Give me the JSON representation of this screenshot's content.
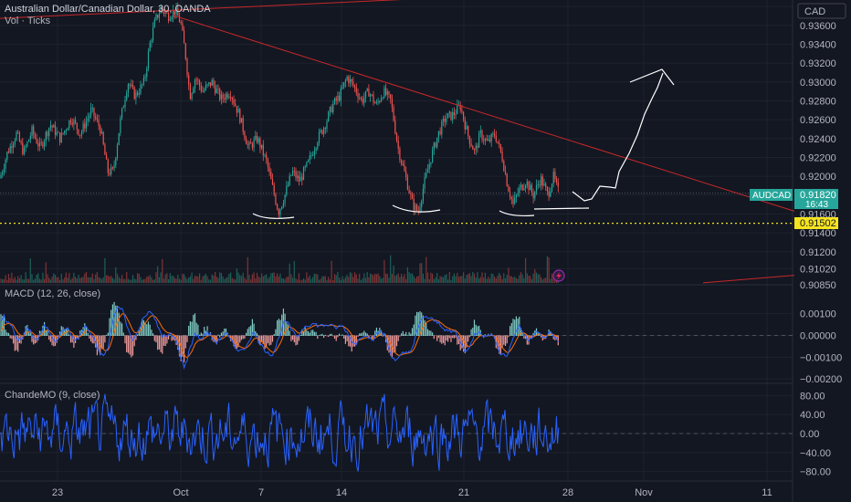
{
  "header": {
    "symbol_title": "Australian Dollar/Canadian Dollar, 30, OANDA",
    "volume_label": "Vol · Ticks",
    "currency_button": "CAD"
  },
  "price_badges": {
    "symbol": "AUDCAD",
    "last_price": "0.91820",
    "countdown": "16:43",
    "level_price": "0.91502"
  },
  "colors": {
    "background": "#131722",
    "up": "#26a69a",
    "down": "#ef5350",
    "trendline": "#c62828",
    "level": "#f5e41f",
    "macd": "#2962ff",
    "signal": "#ff6d00",
    "chande": "#2962ff",
    "drawing": "#ffffff"
  },
  "chart_data": [
    {
      "type": "candlestick",
      "name": "price",
      "title": "Australian Dollar/Canadian Dollar, 30, OANDA",
      "ylim": [
        0.9085,
        0.9385
      ],
      "y_ticks": [
        0.938,
        0.936,
        0.934,
        0.932,
        0.93,
        0.928,
        0.926,
        0.924,
        0.922,
        0.92,
        0.918,
        0.916,
        0.914,
        0.912,
        0.9102,
        0.9085
      ],
      "y_tick_labels": [
        "0.93800",
        "0.93600",
        "0.93400",
        "0.93200",
        "0.93000",
        "0.92800",
        "0.92600",
        "0.92400",
        "0.92200",
        "0.92000",
        "",
        "0.91600",
        "0.91400",
        "0.91200",
        "0.91020",
        "0.90850"
      ],
      "x_tick_labels": [
        "23",
        "Oct",
        "7",
        "14",
        "21",
        "28",
        "Nov",
        "11"
      ],
      "path_points": [
        [
          0,
          0.9198
        ],
        [
          8,
          0.9225
        ],
        [
          18,
          0.9245
        ],
        [
          26,
          0.9225
        ],
        [
          35,
          0.9248
        ],
        [
          44,
          0.923
        ],
        [
          55,
          0.9255
        ],
        [
          66,
          0.924
        ],
        [
          78,
          0.9262
        ],
        [
          88,
          0.9245
        ],
        [
          100,
          0.927
        ],
        [
          110,
          0.925
        ],
        [
          118,
          0.9205
        ],
        [
          124,
          0.9205
        ],
        [
          132,
          0.926
        ],
        [
          140,
          0.93
        ],
        [
          148,
          0.9285
        ],
        [
          158,
          0.93
        ],
        [
          164,
          0.934
        ],
        [
          170,
          0.9365
        ],
        [
          176,
          0.9378
        ],
        [
          184,
          0.937
        ],
        [
          192,
          0.9376
        ],
        [
          198,
          0.9362
        ],
        [
          203,
          0.933
        ],
        [
          208,
          0.9285
        ],
        [
          214,
          0.9305
        ],
        [
          222,
          0.929
        ],
        [
          232,
          0.93
        ],
        [
          242,
          0.9282
        ],
        [
          252,
          0.929
        ],
        [
          262,
          0.9265
        ],
        [
          272,
          0.923
        ],
        [
          282,
          0.924
        ],
        [
          292,
          0.9215
        ],
        [
          298,
          0.919
        ],
        [
          305,
          0.9162
        ],
        [
          312,
          0.918
        ],
        [
          320,
          0.9205
        ],
        [
          328,
          0.9195
        ],
        [
          338,
          0.9215
        ],
        [
          348,
          0.924
        ],
        [
          356,
          0.9255
        ],
        [
          364,
          0.9275
        ],
        [
          372,
          0.9285
        ],
        [
          380,
          0.9305
        ],
        [
          388,
          0.9295
        ],
        [
          396,
          0.928
        ],
        [
          404,
          0.929
        ],
        [
          412,
          0.9275
        ],
        [
          420,
          0.929
        ],
        [
          428,
          0.928
        ],
        [
          436,
          0.923
        ],
        [
          444,
          0.92
        ],
        [
          452,
          0.917
        ],
        [
          458,
          0.9162
        ],
        [
          464,
          0.919
        ],
        [
          472,
          0.922
        ],
        [
          480,
          0.9245
        ],
        [
          488,
          0.9262
        ],
        [
          496,
          0.9265
        ],
        [
          504,
          0.9275
        ],
        [
          512,
          0.9245
        ],
        [
          520,
          0.9225
        ],
        [
          526,
          0.9245
        ],
        [
          534,
          0.9235
        ],
        [
          542,
          0.9245
        ],
        [
          550,
          0.922
        ],
        [
          556,
          0.919
        ],
        [
          562,
          0.917
        ],
        [
          568,
          0.9185
        ],
        [
          576,
          0.9195
        ],
        [
          584,
          0.918
        ],
        [
          592,
          0.9198
        ],
        [
          600,
          0.918
        ],
        [
          606,
          0.92
        ],
        [
          612,
          0.9182
        ]
      ],
      "trendlines": [
        {
          "from": [
            0,
            0.93675
          ],
          "to": [
            475,
            0.9389
          ]
        },
        {
          "from": [
            190,
            0.93705
          ],
          "to": [
            870,
            0.9163
          ]
        },
        {
          "from": [
            770,
            0.9087
          ],
          "to": [
            870,
            0.9095
          ]
        }
      ],
      "horizontal_level": 0.91502,
      "dotted_level": 0.9182
    },
    {
      "type": "bar",
      "name": "volume",
      "title": "Vol · Ticks"
    },
    {
      "type": "line",
      "name": "MACD",
      "title": "MACD (12, 26, close)",
      "ylim": [
        -0.0022,
        0.0022
      ],
      "y_ticks": [
        0.001,
        0.0,
        -0.001,
        -0.002
      ],
      "y_tick_labels": [
        "0.00100",
        "0.00000",
        "−0.00100",
        "−0.00200"
      ]
    },
    {
      "type": "line",
      "name": "ChandeMO",
      "title": "ChandeMO (9, close)",
      "ylim": [
        -100,
        100
      ],
      "y_ticks": [
        80,
        40,
        0,
        -40,
        -80
      ],
      "y_tick_labels": [
        "80.00",
        "40.00",
        "0.00",
        "−40.00",
        "−80.00"
      ]
    }
  ]
}
